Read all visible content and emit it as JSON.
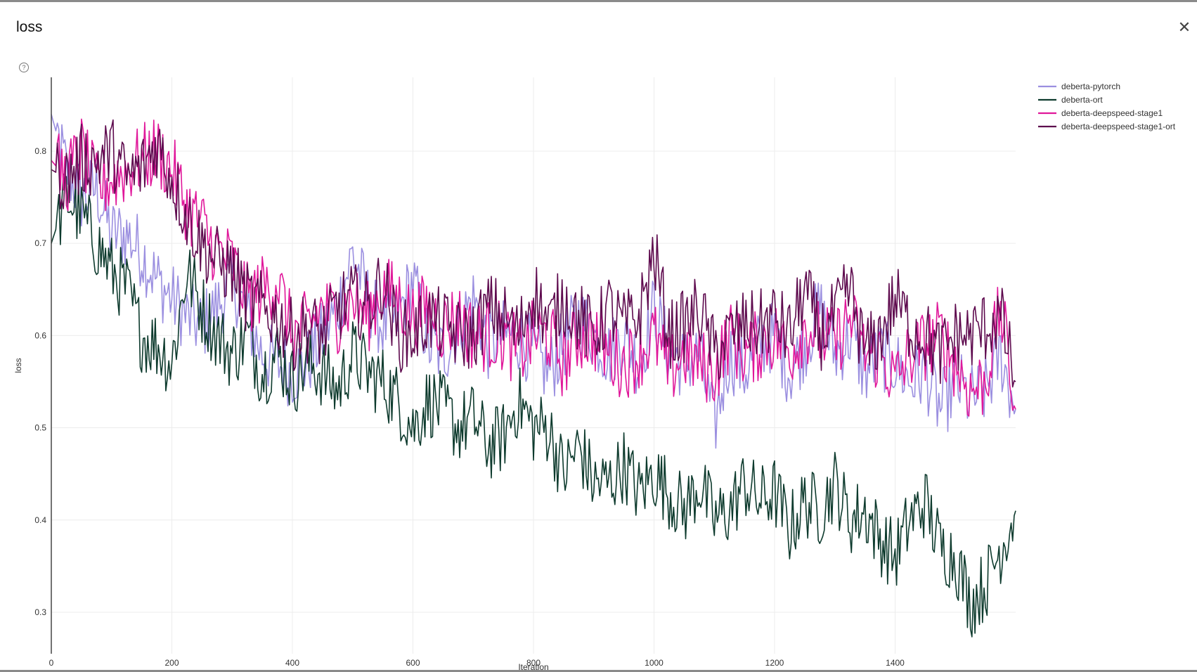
{
  "panel": {
    "title": "loss",
    "close_icon": "close-icon",
    "help_icon": "help-icon",
    "help_symbol": "?"
  },
  "chart_data": {
    "type": "line",
    "title": "",
    "xlabel": "Iteration",
    "ylabel": "loss",
    "xlim": [
      0,
      1600
    ],
    "ylim": [
      0.255,
      0.88
    ],
    "xticks": [
      0,
      200,
      400,
      600,
      800,
      1000,
      1200,
      1400
    ],
    "yticks": [
      0.3,
      0.4,
      0.5,
      0.6,
      0.7,
      0.8
    ],
    "grid": true,
    "legend_position": "top-right",
    "x": [
      0,
      25,
      50,
      75,
      100,
      125,
      150,
      175,
      200,
      225,
      250,
      275,
      300,
      325,
      350,
      375,
      400,
      425,
      450,
      475,
      500,
      525,
      550,
      575,
      600,
      625,
      650,
      675,
      700,
      725,
      750,
      775,
      800,
      825,
      850,
      875,
      900,
      925,
      950,
      975,
      1000,
      1025,
      1050,
      1075,
      1100,
      1125,
      1150,
      1175,
      1200,
      1225,
      1250,
      1275,
      1300,
      1325,
      1350,
      1375,
      1400,
      1425,
      1450,
      1475,
      1500,
      1525,
      1550,
      1575,
      1600
    ],
    "series": [
      {
        "name": "deberta-pytorch",
        "color": "#9b8fe0",
        "values": [
          0.84,
          0.78,
          0.75,
          0.76,
          0.71,
          0.71,
          0.69,
          0.66,
          0.64,
          0.62,
          0.61,
          0.63,
          0.66,
          0.62,
          0.58,
          0.57,
          0.56,
          0.57,
          0.6,
          0.63,
          0.69,
          0.64,
          0.61,
          0.62,
          0.66,
          0.59,
          0.58,
          0.61,
          0.64,
          0.59,
          0.6,
          0.6,
          0.58,
          0.56,
          0.59,
          0.62,
          0.6,
          0.58,
          0.6,
          0.57,
          0.63,
          0.58,
          0.57,
          0.58,
          0.5,
          0.58,
          0.56,
          0.59,
          0.6,
          0.56,
          0.59,
          0.63,
          0.58,
          0.6,
          0.56,
          0.58,
          0.57,
          0.55,
          0.56,
          0.52,
          0.55,
          0.53,
          0.54,
          0.58,
          0.52
        ]
      },
      {
        "name": "deberta-ort",
        "color": "#0e3b2e",
        "values": [
          0.7,
          0.75,
          0.73,
          0.7,
          0.67,
          0.65,
          0.6,
          0.59,
          0.57,
          0.67,
          0.63,
          0.6,
          0.58,
          0.6,
          0.56,
          0.58,
          0.55,
          0.57,
          0.56,
          0.54,
          0.58,
          0.56,
          0.55,
          0.53,
          0.5,
          0.53,
          0.52,
          0.5,
          0.51,
          0.48,
          0.49,
          0.53,
          0.5,
          0.5,
          0.45,
          0.48,
          0.44,
          0.44,
          0.46,
          0.43,
          0.45,
          0.43,
          0.41,
          0.44,
          0.4,
          0.41,
          0.44,
          0.42,
          0.43,
          0.39,
          0.42,
          0.41,
          0.44,
          0.4,
          0.41,
          0.38,
          0.36,
          0.4,
          0.42,
          0.37,
          0.36,
          0.31,
          0.33,
          0.37,
          0.41
        ]
      },
      {
        "name": "deberta-deepspeed-stage1",
        "color": "#e0179a",
        "values": [
          0.79,
          0.77,
          0.8,
          0.76,
          0.77,
          0.78,
          0.79,
          0.8,
          0.78,
          0.74,
          0.72,
          0.69,
          0.68,
          0.64,
          0.65,
          0.66,
          0.6,
          0.61,
          0.63,
          0.62,
          0.64,
          0.62,
          0.65,
          0.64,
          0.62,
          0.63,
          0.61,
          0.62,
          0.6,
          0.6,
          0.6,
          0.58,
          0.6,
          0.6,
          0.57,
          0.6,
          0.6,
          0.58,
          0.57,
          0.58,
          0.6,
          0.56,
          0.58,
          0.57,
          0.56,
          0.6,
          0.58,
          0.59,
          0.6,
          0.58,
          0.61,
          0.6,
          0.59,
          0.62,
          0.58,
          0.58,
          0.55,
          0.58,
          0.59,
          0.6,
          0.57,
          0.54,
          0.55,
          0.63,
          0.52
        ]
      },
      {
        "name": "deberta-deepspeed-stage1-ort",
        "color": "#5e0a4e",
        "values": [
          0.78,
          0.77,
          0.79,
          0.79,
          0.8,
          0.77,
          0.78,
          0.81,
          0.77,
          0.73,
          0.7,
          0.68,
          0.67,
          0.64,
          0.63,
          0.62,
          0.6,
          0.61,
          0.6,
          0.63,
          0.64,
          0.63,
          0.66,
          0.6,
          0.6,
          0.62,
          0.61,
          0.6,
          0.6,
          0.63,
          0.62,
          0.6,
          0.65,
          0.61,
          0.64,
          0.62,
          0.6,
          0.63,
          0.61,
          0.62,
          0.69,
          0.6,
          0.61,
          0.63,
          0.58,
          0.6,
          0.61,
          0.61,
          0.62,
          0.6,
          0.65,
          0.6,
          0.62,
          0.65,
          0.58,
          0.6,
          0.64,
          0.61,
          0.6,
          0.58,
          0.6,
          0.6,
          0.61,
          0.62,
          0.55
        ]
      }
    ]
  }
}
